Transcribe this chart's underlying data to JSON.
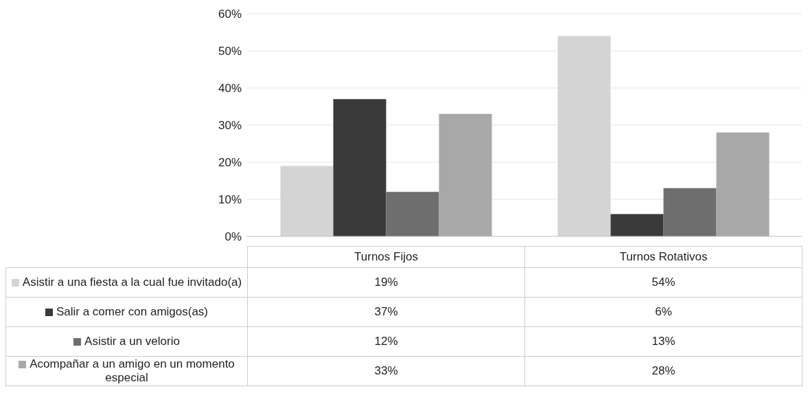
{
  "chart_data": {
    "type": "bar",
    "categories": [
      "Turnos Fijos",
      "Turnos Rotativos"
    ],
    "series": [
      {
        "name": "Asistir a una fiesta a la cual fue invitado(a)",
        "color": "#d4d4d4",
        "values": [
          19,
          54
        ],
        "value_labels": [
          "19%",
          "54%"
        ]
      },
      {
        "name": "Salir a comer con amigos(as)",
        "color": "#3a3a3a",
        "values": [
          37,
          6
        ],
        "value_labels": [
          "37%",
          "6%"
        ]
      },
      {
        "name": "Asistir a un velorio",
        "color": "#6e6e6e",
        "values": [
          12,
          13
        ],
        "value_labels": [
          "12%",
          "13%"
        ]
      },
      {
        "name": "Acompañar a un amigo en un momento especial",
        "color": "#a8a8a8",
        "values": [
          33,
          28
        ],
        "value_labels": [
          "33%",
          "28%"
        ]
      }
    ],
    "ylim": [
      0,
      60
    ],
    "yticks": [
      {
        "value": 0,
        "label": "0%"
      },
      {
        "value": 10,
        "label": "10%"
      },
      {
        "value": 20,
        "label": "20%"
      },
      {
        "value": 30,
        "label": "30%"
      },
      {
        "value": 40,
        "label": "40%"
      },
      {
        "value": 50,
        "label": "50%"
      },
      {
        "value": 60,
        "label": "60%"
      }
    ],
    "grid": "y",
    "legend": "bottom"
  }
}
